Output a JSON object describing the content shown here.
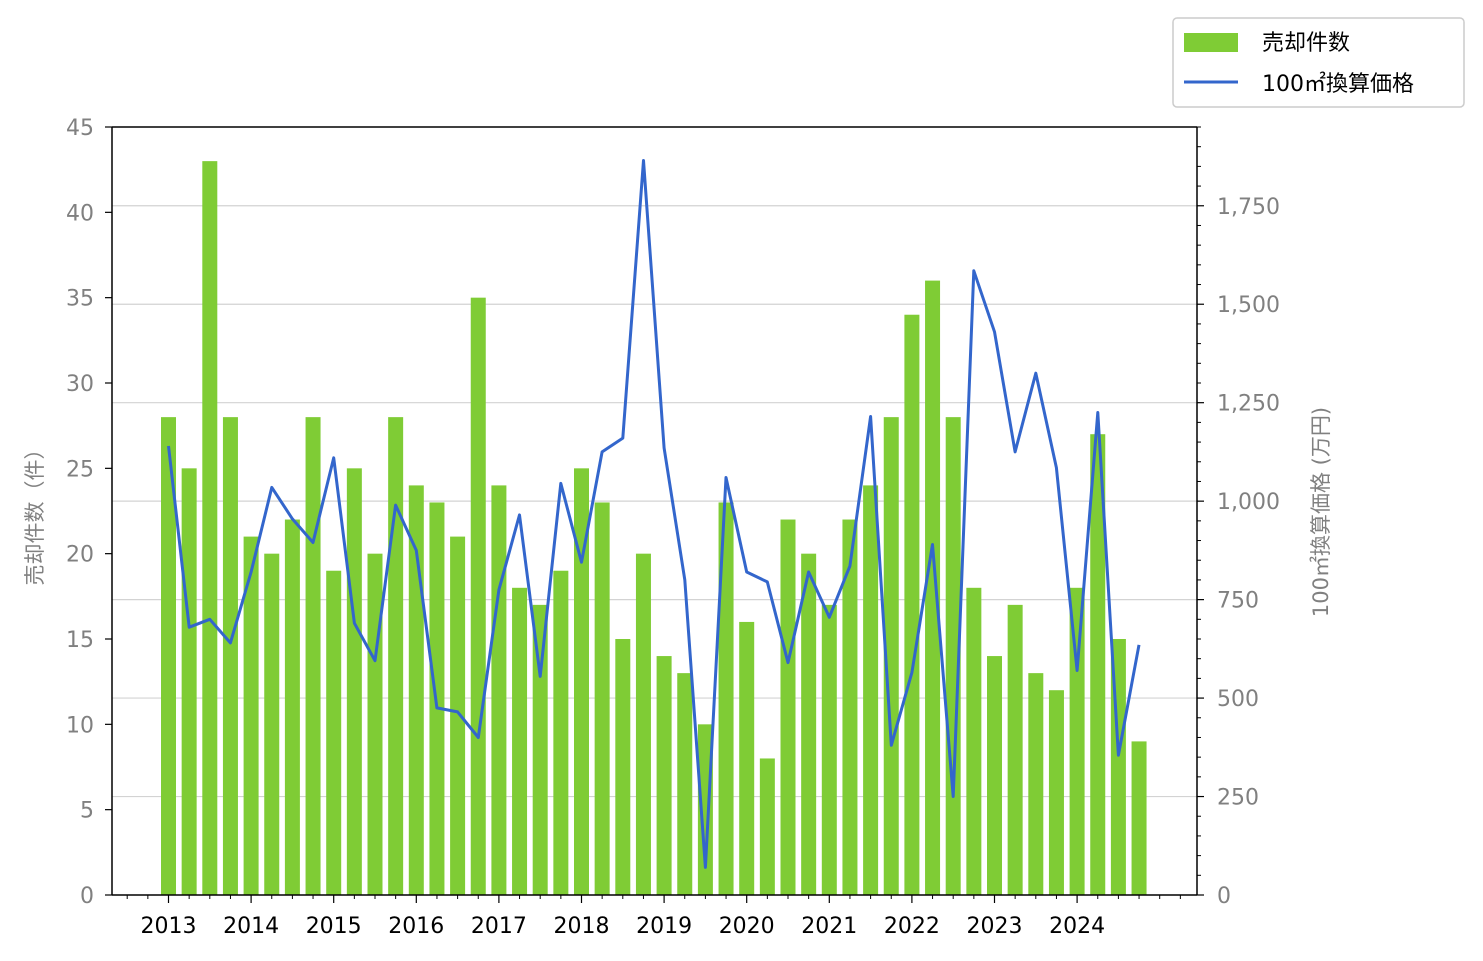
{
  "chart_data": {
    "type": "bar+line",
    "x_labels": [
      "2013",
      "2014",
      "2015",
      "2016",
      "2017",
      "2018",
      "2019",
      "2020",
      "2021",
      "2022",
      "2023",
      "2024"
    ],
    "periods": [
      "2013Q1",
      "2013Q2",
      "2013Q3",
      "2013Q4",
      "2014Q1",
      "2014Q2",
      "2014Q3",
      "2014Q4",
      "2015Q1",
      "2015Q2",
      "2015Q3",
      "2015Q4",
      "2016Q1",
      "2016Q2",
      "2016Q3",
      "2016Q4",
      "2017Q1",
      "2017Q2",
      "2017Q3",
      "2017Q4",
      "2018Q1",
      "2018Q2",
      "2018Q3",
      "2018Q4",
      "2019Q1",
      "2019Q2",
      "2019Q3",
      "2019Q4",
      "2020Q1",
      "2020Q2",
      "2020Q3",
      "2020Q4",
      "2021Q1",
      "2021Q2",
      "2021Q3",
      "2021Q4",
      "2022Q1",
      "2022Q2",
      "2022Q3",
      "2022Q4",
      "2023Q1",
      "2023Q2",
      "2023Q3",
      "2023Q4",
      "2024Q1",
      "2024Q2",
      "2024Q3",
      "2024Q4"
    ],
    "series": [
      {
        "name": "売却件数",
        "type": "bar",
        "axis": "left",
        "color": "#7fcc35",
        "values": [
          28,
          25,
          43,
          28,
          21,
          20,
          22,
          28,
          19,
          25,
          20,
          28,
          24,
          23,
          21,
          35,
          24,
          18,
          17,
          19,
          25,
          23,
          15,
          20,
          14,
          13,
          10,
          23,
          16,
          8,
          22,
          20,
          17,
          22,
          24,
          28,
          34,
          36,
          28,
          18,
          14,
          17,
          13,
          12,
          18,
          27,
          15,
          9
        ]
      },
      {
        "name": "100㎡換算価格",
        "type": "line",
        "axis": "right",
        "color": "#3366cc",
        "values": [
          1140,
          680,
          700,
          640,
          820,
          1035,
          955,
          895,
          1110,
          690,
          595,
          990,
          875,
          475,
          465,
          400,
          775,
          965,
          555,
          1045,
          845,
          1125,
          1160,
          1865,
          1135,
          800,
          70,
          1060,
          820,
          795,
          590,
          820,
          705,
          835,
          1215,
          380,
          565,
          890,
          250,
          1585,
          1430,
          1125,
          1325,
          1085,
          570,
          1225,
          355,
          635
        ]
      }
    ],
    "left_axis": {
      "label": "売却件数（件）",
      "ylim": [
        0,
        45
      ],
      "ticks": [
        "0",
        "5",
        "10",
        "15",
        "20",
        "25",
        "30",
        "35",
        "40",
        "45"
      ]
    },
    "right_axis": {
      "label": "100㎡換算価格 (万円)",
      "ylim": [
        0,
        1950
      ],
      "ticks": [
        "0",
        "250",
        "500",
        "750",
        "1,000",
        "1,250",
        "1,500",
        "1,750"
      ]
    },
    "grid": "horizontal (right axis)",
    "legend": {
      "placement": "top-right outside",
      "entries": [
        "売却件数",
        "100㎡換算価格"
      ]
    }
  }
}
